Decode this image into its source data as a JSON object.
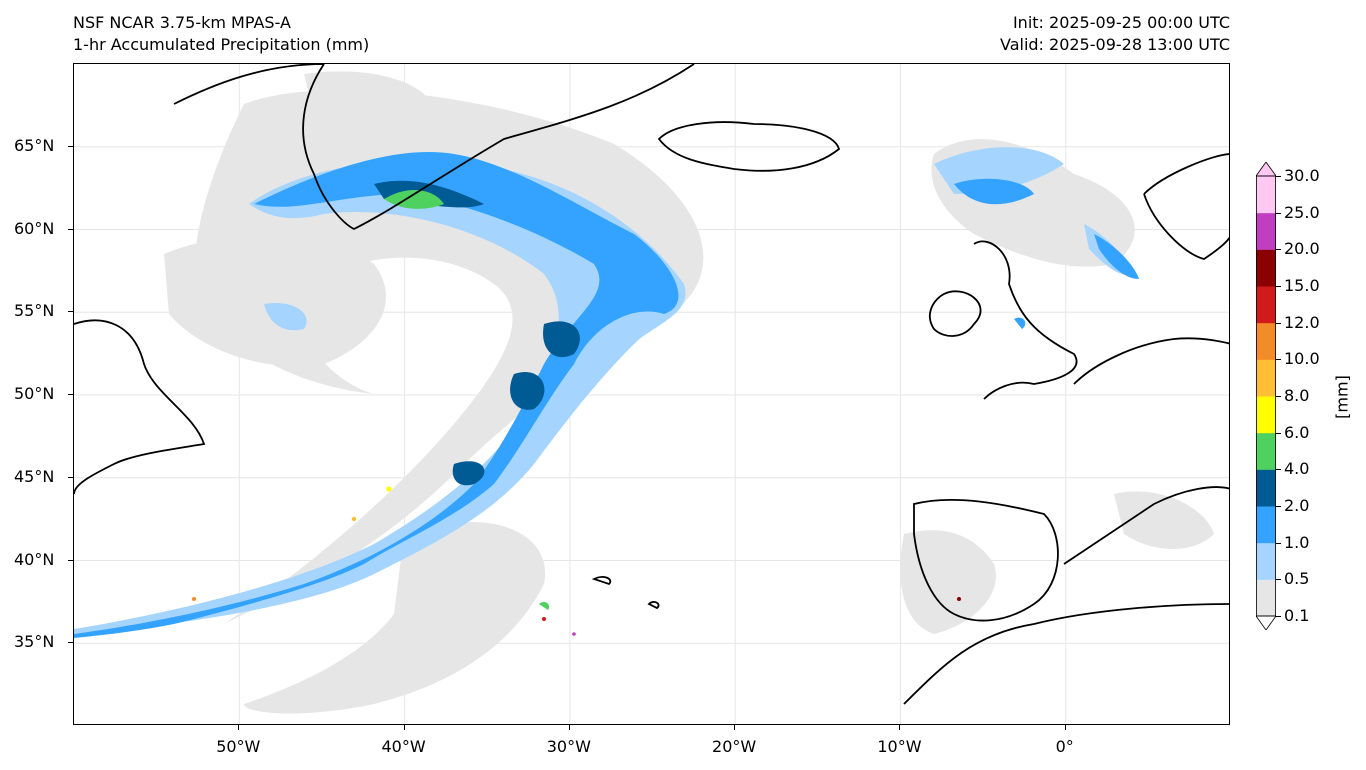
{
  "header": {
    "model": "NSF NCAR 3.75-km MPAS-A",
    "field": "1-hr Accumulated Precipitation (mm)",
    "init": "Init: 2025-09-25 00:00 UTC",
    "valid": "Valid: 2025-09-28 13:00 UTC"
  },
  "map": {
    "lon_range": [
      -60,
      10
    ],
    "lat_range": [
      30,
      70
    ],
    "lat_ticks": [
      {
        "value": 65,
        "label": "65°N"
      },
      {
        "value": 60,
        "label": "60°N"
      },
      {
        "value": 55,
        "label": "55°N"
      },
      {
        "value": 50,
        "label": "50°N"
      },
      {
        "value": 45,
        "label": "45°N"
      },
      {
        "value": 40,
        "label": "40°N"
      },
      {
        "value": 35,
        "label": "35°N"
      }
    ],
    "lon_ticks": [
      {
        "value": -50,
        "label": "50°W"
      },
      {
        "value": -40,
        "label": "40°W"
      },
      {
        "value": -30,
        "label": "30°W"
      },
      {
        "value": -20,
        "label": "20°W"
      },
      {
        "value": -10,
        "label": "10°W"
      },
      {
        "value": 0,
        "label": "0°"
      }
    ],
    "land_outline_color": "#000000",
    "gridline_color": "#e6e6e6"
  },
  "colorbar": {
    "unit": "[mm]",
    "levels": [
      "0.1",
      "0.5",
      "1.0",
      "2.0",
      "4.0",
      "6.0",
      "8.0",
      "10.0",
      "12.0",
      "15.0",
      "20.0",
      "25.0",
      "30.0"
    ],
    "colors": [
      "#e6e6e6",
      "#a5d5ff",
      "#33a3ff",
      "#005a94",
      "#4fd15f",
      "#ffff00",
      "#ffbe33",
      "#f28c28",
      "#d11a1a",
      "#8b0000",
      "#c03fc0",
      "#ffc8f2"
    ]
  }
}
